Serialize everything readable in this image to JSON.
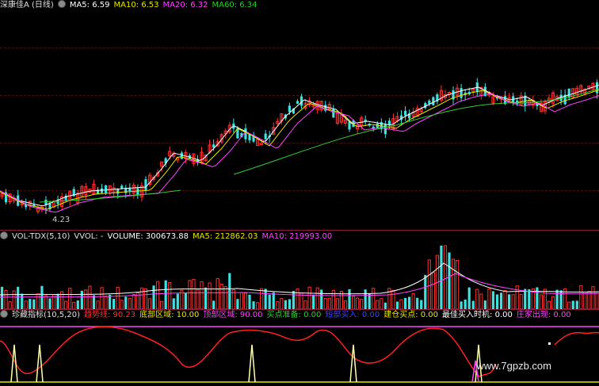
{
  "price_pane": {
    "stock_label": "深康佳A (日线)",
    "ma5": "MA5: 6.59",
    "ma10": "MA10: 6.53",
    "ma20": "MA20: 6.32",
    "ma60": "MA60: 6.34",
    "low_marker": "4.23",
    "colors": {
      "ma5": "#ffffff",
      "ma10": "#e6e600",
      "ma20": "#ff44ff",
      "ma60": "#33cc33",
      "up": "#ff3030",
      "down": "#40e0e0"
    }
  },
  "volume_pane": {
    "indicator": "VOL-TDX(5,10)",
    "vvol": "VVOL: -",
    "volume": "VOLUME: 300673.88",
    "ma5": "MA5: 212862.03",
    "ma10": "MA10: 219993.00"
  },
  "indicator_pane": {
    "name": "珍藏指标(10,5,20)",
    "trend": "趋势线: 90.23",
    "bottom": "底部区域: 10.00",
    "top": "顶部区域: 90.00",
    "buy_prep": "买点准备: 0.00",
    "bull": "短部买入: 0.00",
    "build": "建仓买点: 0.00",
    "best_buy": "最佳买入时机: 0.00",
    "dealer": "庄家出现: 0.00"
  },
  "watermark": "www.7gpzb.com"
}
